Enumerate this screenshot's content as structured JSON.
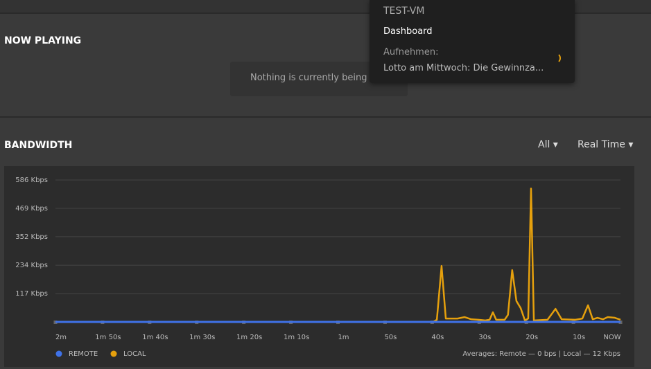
{
  "now_playing": {
    "title": "NOW PLAYING",
    "message": "Nothing is currently being played"
  },
  "popup": {
    "server": "TEST-VM",
    "link": "Dashboard",
    "activity_label": "Aufnehmen:",
    "activity_item": "Lotto am Mittwoch: Die Gewinnza..."
  },
  "bandwidth": {
    "title": "BANDWIDTH",
    "filter": "All",
    "range": "Real Time",
    "averages": "Averages: Remote — 0 bps | Local — 12 Kbps"
  },
  "chart_data": {
    "type": "line",
    "xlim": [
      -120,
      0
    ],
    "xticks": [
      {
        "value": -120,
        "label": "2m"
      },
      {
        "value": -110,
        "label": "1m 50s"
      },
      {
        "value": -100,
        "label": "1m 40s"
      },
      {
        "value": -90,
        "label": "1m 30s"
      },
      {
        "value": -80,
        "label": "1m 20s"
      },
      {
        "value": -70,
        "label": "1m 10s"
      },
      {
        "value": -60,
        "label": "1m"
      },
      {
        "value": -50,
        "label": "50s"
      },
      {
        "value": -40,
        "label": "40s"
      },
      {
        "value": -30,
        "label": "30s"
      },
      {
        "value": -20,
        "label": "20s"
      },
      {
        "value": -10,
        "label": "10s"
      },
      {
        "value": 0,
        "label": "NOW"
      }
    ],
    "ylim": [
      0,
      586
    ],
    "yticks": [
      {
        "value": 117,
        "label": "117 Kbps"
      },
      {
        "value": 234,
        "label": "234 Kbps"
      },
      {
        "value": 352,
        "label": "352 Kbps"
      },
      {
        "value": 469,
        "label": "469 Kbps"
      },
      {
        "value": 586,
        "label": "586 Kbps"
      }
    ],
    "grid": true,
    "legend": "bottom-left",
    "series": [
      {
        "name": "REMOTE",
        "color": "#3f72e8",
        "x": [
          -120,
          0
        ],
        "values": [
          0,
          0
        ]
      },
      {
        "name": "LOCAL",
        "color": "#e5a00d",
        "x": [
          -120,
          -39.8,
          -39.0,
          -38.0,
          -37.1,
          -34.6,
          -33.1,
          -31.7,
          -30.2,
          -28.7,
          -27.8,
          -27.1,
          -26.4,
          -24.6,
          -23.9,
          -23.0,
          -22.1,
          -21.2,
          -20.3,
          -19.6,
          -19.0,
          -18.4,
          -15.5,
          -13.8,
          -12.5,
          -9.6,
          -8.1,
          -6.9,
          -5.9,
          -4.9,
          -3.7,
          -2.7,
          -1.2,
          0
        ],
        "values": [
          0,
          0,
          9,
          231,
          14,
          14,
          20,
          11,
          9,
          6,
          9,
          40,
          9,
          9,
          29,
          214,
          86,
          57,
          6,
          14,
          551,
          6,
          9,
          54,
          11,
          9,
          14,
          69,
          11,
          17,
          11,
          20,
          17,
          9
        ]
      }
    ]
  }
}
